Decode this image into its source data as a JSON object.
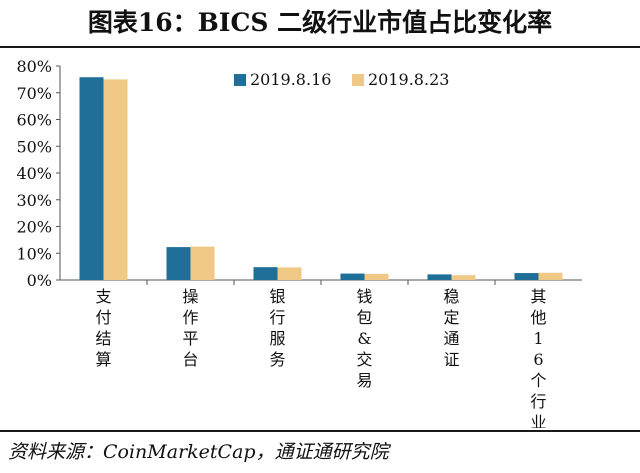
{
  "title": "图表16：BICS 二级行业市值占比变化率",
  "source": "资料来源：CoinMarketCap，通证通研究院",
  "colors": {
    "series1": "#1f6f99",
    "series2": "#f0c987",
    "axis": "#555555"
  },
  "chart_data": {
    "type": "bar",
    "categories": [
      "支付结算",
      "操作平台",
      "银行服务",
      "钱包&交易",
      "稳定通证",
      "其他16个行业"
    ],
    "series": [
      {
        "name": "2019.8.16",
        "values": [
          75.8,
          12.3,
          4.8,
          2.4,
          2.1,
          2.6
        ]
      },
      {
        "name": "2019.8.23",
        "values": [
          75.0,
          12.5,
          4.7,
          2.3,
          1.8,
          2.7
        ]
      }
    ],
    "ylim": [
      0,
      80
    ],
    "yticks": [
      "0%",
      "10%",
      "20%",
      "30%",
      "40%",
      "50%",
      "60%",
      "70%",
      "80%"
    ],
    "legend": "top-right",
    "grid": false
  }
}
